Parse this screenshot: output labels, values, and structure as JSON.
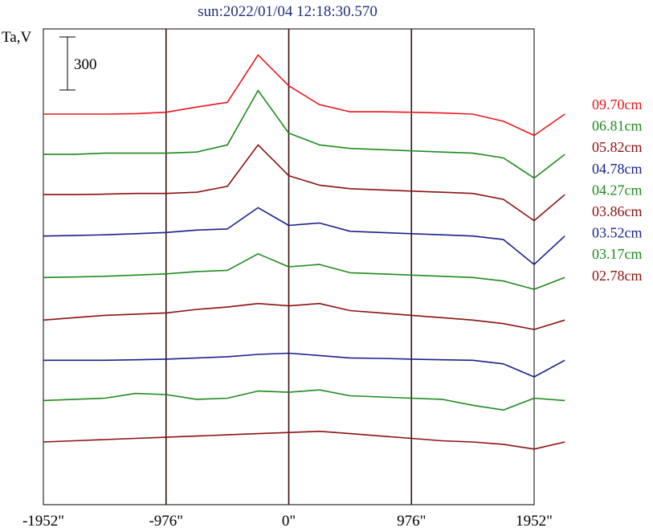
{
  "chart_data": {
    "type": "line",
    "title": "sun:2022/01/04 12:18:30.570",
    "ylabel": "Ta,V",
    "xlabel": "",
    "xlim": [
      -1952,
      1952
    ],
    "x_ticks": [
      {
        "value": -1952,
        "label": "-1952\""
      },
      {
        "value": -976,
        "label": "-976\""
      },
      {
        "value": 0,
        "label": "0\""
      },
      {
        "value": 976,
        "label": "976\""
      },
      {
        "value": 1952,
        "label": "1952\""
      }
    ],
    "vertical_lines_at": [
      -976,
      0,
      976
    ],
    "scale_bar": {
      "label": "300",
      "value": 300
    },
    "x_step": 244,
    "series": [
      {
        "name": "09.70cm",
        "color": "#e8161c",
        "offset": 1500,
        "values": [
          0,
          0,
          0,
          2,
          8,
          30,
          50,
          250,
          120,
          40,
          10,
          10,
          8,
          5,
          0,
          -30,
          -90,
          0
        ]
      },
      {
        "name": "06.81cm",
        "color": "#1e8a1e",
        "offset": 1330,
        "values": [
          0,
          0,
          5,
          5,
          5,
          10,
          40,
          270,
          90,
          40,
          25,
          20,
          15,
          10,
          5,
          -15,
          -100,
          0
        ]
      },
      {
        "name": "05.82cm",
        "color": "#8b1010",
        "offset": 1160,
        "values": [
          0,
          0,
          2,
          5,
          5,
          10,
          35,
          210,
          80,
          40,
          25,
          20,
          15,
          10,
          5,
          -20,
          -110,
          0
        ]
      },
      {
        "name": "04.78cm",
        "color": "#1a1f8a",
        "offset": 985,
        "values": [
          0,
          2,
          5,
          10,
          15,
          25,
          30,
          120,
          45,
          55,
          20,
          15,
          10,
          5,
          0,
          -15,
          -120,
          0
        ]
      },
      {
        "name": "04.27cm",
        "color": "#1e8a1e",
        "offset": 810,
        "values": [
          0,
          2,
          5,
          10,
          15,
          25,
          30,
          100,
          45,
          55,
          20,
          15,
          10,
          5,
          0,
          -15,
          -50,
          0
        ]
      },
      {
        "name": "03.86cm",
        "color": "#8b1010",
        "offset": 630,
        "values": [
          0,
          10,
          20,
          25,
          30,
          45,
          55,
          70,
          60,
          70,
          40,
          30,
          20,
          10,
          0,
          -15,
          -40,
          0
        ]
      },
      {
        "name": "03.52cm",
        "color": "#1a1f8a",
        "offset": 460,
        "values": [
          0,
          0,
          0,
          2,
          5,
          10,
          15,
          25,
          30,
          20,
          10,
          8,
          5,
          2,
          0,
          -15,
          -70,
          0
        ]
      },
      {
        "name": "03.17cm",
        "color": "#1e8a1e",
        "offset": 290,
        "values": [
          0,
          5,
          10,
          30,
          25,
          5,
          10,
          40,
          35,
          45,
          20,
          15,
          10,
          5,
          -20,
          -40,
          10,
          0
        ]
      },
      {
        "name": "02.78cm",
        "color": "#8b1010",
        "offset": 115,
        "values": [
          0,
          5,
          10,
          15,
          20,
          25,
          30,
          35,
          40,
          45,
          35,
          25,
          15,
          5,
          0,
          -10,
          -30,
          0
        ]
      }
    ],
    "legend": "right",
    "grid": false
  }
}
